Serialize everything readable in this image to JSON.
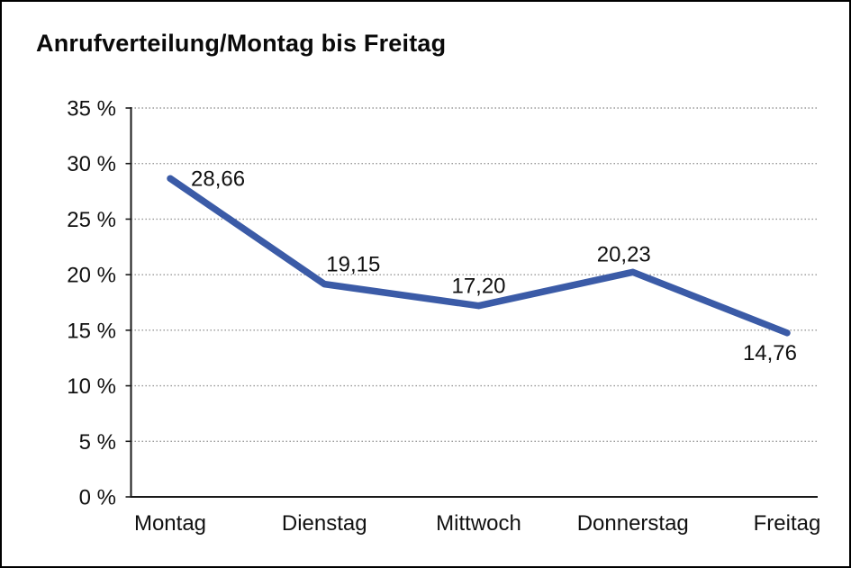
{
  "chart_data": {
    "type": "line",
    "title": "Anrufverteilung/Montag bis Freitag",
    "categories": [
      "Montag",
      "Dienstag",
      "Mittwoch",
      "Donnerstag",
      "Freitag"
    ],
    "series": [
      {
        "name": "Anrufverteilung",
        "values": [
          28.66,
          19.15,
          17.2,
          20.23,
          14.76
        ]
      }
    ],
    "data_labels": [
      "28,66",
      "19,15",
      "17,20",
      "20,23",
      "14,76"
    ],
    "y_tick_values": [
      0,
      5,
      10,
      15,
      20,
      25,
      30,
      35
    ],
    "y_tick_labels": [
      "0 %",
      "5 %",
      "10 %",
      "15 %",
      "20 %",
      "25 %",
      "30 %",
      "35 %"
    ],
    "ylim": [
      0,
      35
    ],
    "grid": "horizontal-dotted",
    "legend": "none",
    "colors": {
      "line": "#3B5BA7",
      "axis": "#1a1a1a",
      "gridline": "#8f8f8f",
      "text": "#111111"
    }
  }
}
